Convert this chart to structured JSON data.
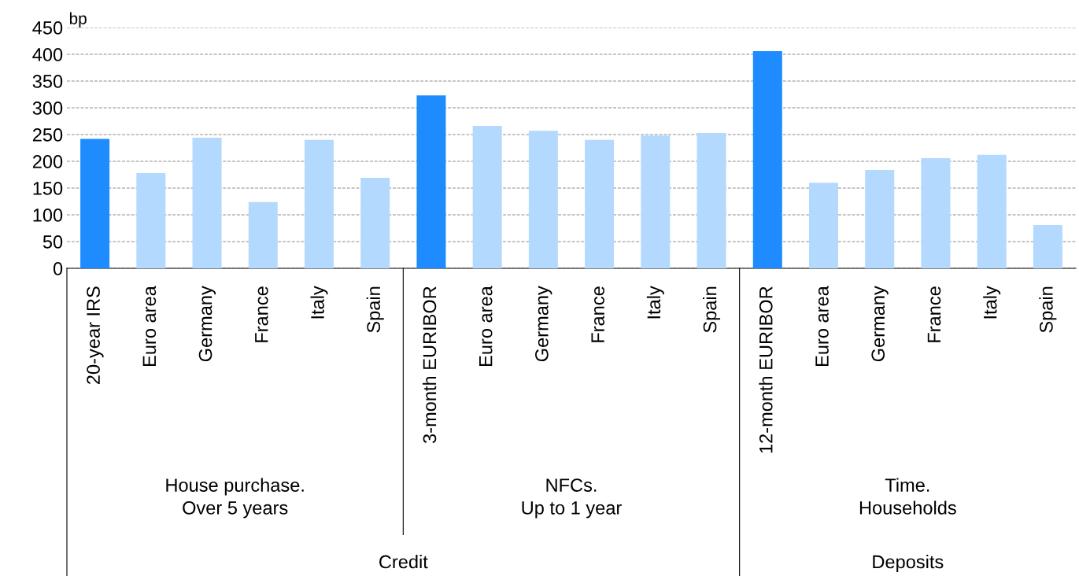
{
  "chart_data": {
    "type": "bar",
    "ylabel": "bp",
    "categories": [
      "20-year IRS",
      "Euro area",
      "Germany",
      "France",
      "Italy",
      "Spain",
      "3-month EURIBOR",
      "Euro area",
      "Germany",
      "France",
      "Italy",
      "Spain",
      "12-month EURIBOR",
      "Euro area",
      "Germany",
      "France",
      "Italy",
      "Spain"
    ],
    "values": [
      242,
      178,
      244,
      124,
      240,
      169,
      323,
      266,
      257,
      240,
      248,
      253,
      406,
      160,
      184,
      206,
      212,
      81
    ],
    "colors": [
      "#1e8cff",
      "#b3d9ff",
      "#b3d9ff",
      "#b3d9ff",
      "#b3d9ff",
      "#b3d9ff",
      "#1e8cff",
      "#b3d9ff",
      "#b3d9ff",
      "#b3d9ff",
      "#b3d9ff",
      "#b3d9ff",
      "#1e8cff",
      "#b3d9ff",
      "#b3d9ff",
      "#b3d9ff",
      "#b3d9ff",
      "#b3d9ff"
    ],
    "ylim": [
      0,
      450
    ],
    "yticks": [
      0,
      50,
      100,
      150,
      200,
      250,
      300,
      350,
      400,
      450
    ],
    "grid": "y",
    "annotations": [
      "House purchase.\nOver 5 years",
      "NFCs.\nUp to 1 year",
      "Time.\nHouseholds",
      "Credit",
      "Deposits"
    ]
  }
}
